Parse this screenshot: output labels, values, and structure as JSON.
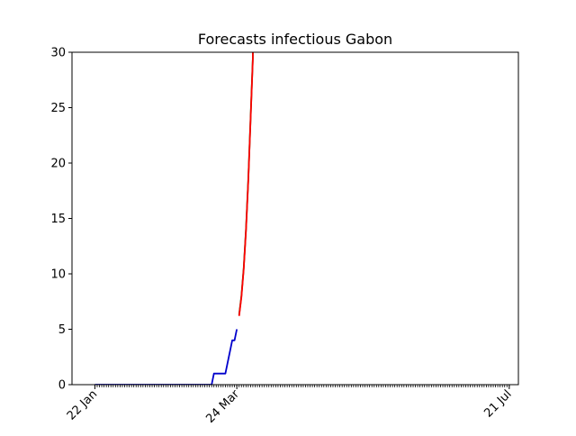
{
  "chart_data": {
    "type": "line",
    "title": "Forecasts infectious Gabon",
    "xlabel": "",
    "ylabel": "",
    "x_axis": {
      "type": "date",
      "range": [
        "2020-01-12",
        "2020-07-25"
      ],
      "tick_labels": [
        {
          "date": "2020-01-22",
          "label": "22 Jan"
        },
        {
          "date": "2020-03-24",
          "label": "24 Mar"
        },
        {
          "date": "2020-07-21",
          "label": "21 Jul"
        }
      ],
      "minor_tick_start": "2020-01-22",
      "minor_tick_end": "2020-07-21"
    },
    "ylim": [
      0,
      30
    ],
    "yticks": [
      0,
      5,
      10,
      15,
      20,
      25,
      30
    ],
    "grid": false,
    "series": [
      {
        "color": "#0000cc",
        "points": [
          [
            "2020-01-22",
            0
          ],
          [
            "2020-03-13",
            0
          ],
          [
            "2020-03-14",
            1
          ],
          [
            "2020-03-19",
            1
          ],
          [
            "2020-03-22",
            4
          ],
          [
            "2020-03-23",
            4
          ],
          [
            "2020-03-24",
            5
          ]
        ]
      },
      {
        "color": "#006400",
        "points": [
          [
            "2020-03-25",
            6.3
          ],
          [
            "2020-03-26",
            8.0
          ],
          [
            "2020-03-27",
            10.5
          ],
          [
            "2020-03-28",
            14.0
          ],
          [
            "2020-03-29",
            18.5
          ],
          [
            "2020-03-30",
            24.0
          ],
          [
            "2020-03-31",
            29.5
          ],
          [
            "2020-03-31",
            30
          ]
        ]
      },
      {
        "color": "#ff0000",
        "points": [
          [
            "2020-03-25",
            6.2
          ],
          [
            "2020-03-26",
            7.9
          ],
          [
            "2020-03-27",
            10.4
          ],
          [
            "2020-03-28",
            13.9
          ],
          [
            "2020-03-29",
            18.4
          ],
          [
            "2020-03-30",
            23.9
          ],
          [
            "2020-03-31",
            29.4
          ],
          [
            "2020-03-31",
            30
          ]
        ]
      }
    ]
  }
}
